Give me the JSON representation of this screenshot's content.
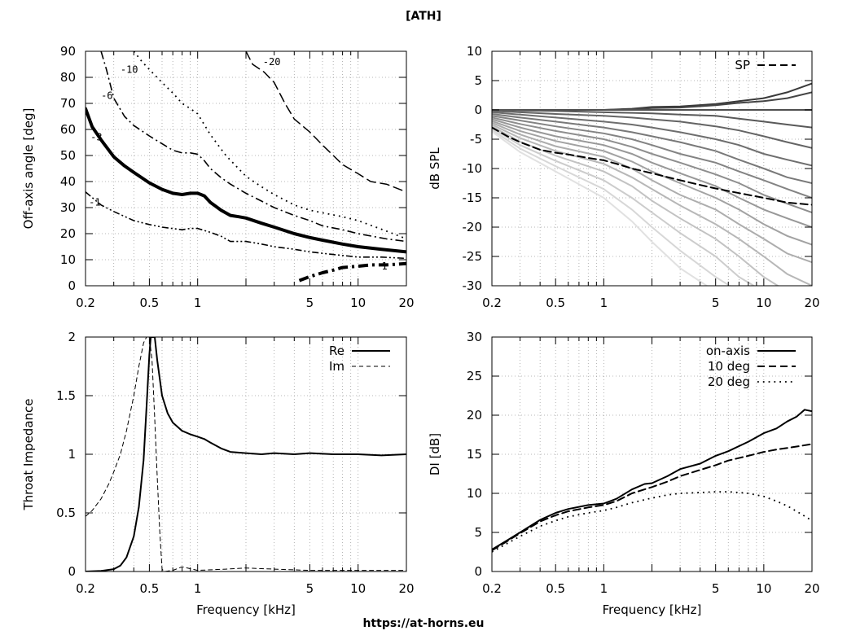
{
  "header": {
    "title": "[ATH]"
  },
  "footer": {
    "url": "https://at-horns.eu"
  },
  "chart_data": [
    {
      "id": "polar",
      "type": "line",
      "title": "",
      "xlabel": "",
      "ylabel": "Off-axis angle [deg]",
      "xscale": "log",
      "xlim": [
        0.2,
        20
      ],
      "ylim": [
        0,
        90
      ],
      "xticks": [
        0.2,
        0.5,
        1,
        2,
        5,
        10,
        20
      ],
      "xtick_labels": [
        "0.2",
        "0.5",
        "1",
        "",
        "5",
        "10",
        "20"
      ],
      "yticks": [
        0,
        10,
        20,
        30,
        40,
        50,
        60,
        70,
        80,
        90
      ],
      "grid": true,
      "series": [
        {
          "name": "-1",
          "style": "dash-dot-dot",
          "label_at": [
            0.21,
            32
          ],
          "x": [
            0.2,
            0.25,
            0.3,
            0.4,
            0.5,
            0.6,
            0.8,
            0.9,
            1.0,
            1.2,
            1.4,
            1.6,
            2.0,
            2.5,
            3,
            4,
            5,
            7,
            10,
            14,
            20
          ],
          "y": [
            36,
            31,
            28.5,
            25,
            23.5,
            22.5,
            21.5,
            22,
            22,
            20.5,
            19,
            17,
            17,
            16,
            15,
            14,
            13,
            12,
            11,
            11,
            10.5
          ]
        },
        {
          "name": "-3",
          "style": "thick",
          "label_at": [
            0.215,
            57
          ],
          "x": [
            0.2,
            0.22,
            0.25,
            0.3,
            0.35,
            0.4,
            0.5,
            0.6,
            0.7,
            0.8,
            0.9,
            1.0,
            1.1,
            1.2,
            1.4,
            1.6,
            1.8,
            2.0,
            2.5,
            3,
            4,
            5,
            6,
            8,
            10,
            14,
            20
          ],
          "y": [
            68,
            61,
            56,
            49.5,
            46,
            43.5,
            39.5,
            37,
            35.5,
            35,
            35.5,
            35.5,
            34.5,
            32,
            29,
            27,
            26.5,
            26,
            24,
            22.5,
            20,
            18.5,
            17.5,
            16,
            15,
            14,
            13
          ]
        },
        {
          "name": "-6",
          "style": "dash-dot",
          "label_at": [
            0.25,
            73
          ],
          "x": [
            0.25,
            0.27,
            0.3,
            0.35,
            0.4,
            0.5,
            0.6,
            0.7,
            0.8,
            0.9,
            1.0,
            1.1,
            1.2,
            1.4,
            1.6,
            2.0,
            2.5,
            3,
            4,
            5,
            6,
            8,
            10,
            15,
            20
          ],
          "y": [
            90,
            83,
            72,
            65,
            61.5,
            57.5,
            54.5,
            52,
            51,
            51,
            50.5,
            48,
            45,
            41.5,
            39,
            35.5,
            32.5,
            30,
            27,
            25,
            23,
            21.5,
            20,
            18,
            17
          ]
        },
        {
          "name": "-10",
          "style": "dotted",
          "label_at": [
            0.33,
            83
          ],
          "x": [
            0.4,
            0.45,
            0.5,
            0.6,
            0.7,
            0.8,
            0.9,
            1.0,
            1.2,
            1.5,
            2.0,
            2.5,
            3,
            4,
            5,
            6,
            8,
            10,
            15,
            20
          ],
          "y": [
            90,
            86,
            83,
            78,
            74,
            70,
            68,
            66,
            58,
            50,
            42,
            38,
            35,
            31,
            29,
            28,
            26.5,
            25,
            21,
            18
          ]
        },
        {
          "name": "-20",
          "style": "long-dash",
          "label_at": [
            2.55,
            86
          ],
          "x": [
            2.0,
            2.2,
            2.6,
            3,
            3.5,
            4,
            5,
            6,
            7,
            8,
            10,
            12,
            15,
            20
          ],
          "y": [
            90,
            85,
            82,
            78,
            70,
            64,
            59,
            54,
            50,
            46.5,
            43,
            40,
            39,
            36
          ]
        },
        {
          "name": "1",
          "style": "thick-dash-dot",
          "label_at": [
            14,
            7.5
          ],
          "x": [
            4.3,
            5,
            6,
            7,
            8,
            10,
            12,
            15,
            20
          ],
          "y": [
            2,
            3.5,
            5,
            6,
            7,
            7.5,
            8,
            8,
            8.5
          ]
        }
      ]
    },
    {
      "id": "spl",
      "type": "line",
      "title": "",
      "xlabel": "",
      "ylabel": "dB SPL",
      "xscale": "log",
      "xlim": [
        0.2,
        20
      ],
      "ylim": [
        -30,
        10
      ],
      "xticks": [
        0.2,
        0.5,
        1,
        2,
        5,
        10,
        20
      ],
      "xtick_labels": [
        "0.2",
        "0.5",
        "1",
        "",
        "5",
        "10",
        "20"
      ],
      "yticks": [
        -30,
        -25,
        -20,
        -15,
        -10,
        -5,
        0,
        5,
        10
      ],
      "grid": true,
      "legend": {
        "position": "top-right",
        "entries": [
          "SP"
        ]
      },
      "series": [
        {
          "name": "SP",
          "style": "dashed",
          "x": [
            0.2,
            0.25,
            0.3,
            0.4,
            0.5,
            0.6,
            0.8,
            1.0,
            1.2,
            1.5,
            2,
            3,
            4,
            5,
            7,
            10,
            14,
            20
          ],
          "y": [
            -3,
            -4.5,
            -5.5,
            -6.8,
            -7.3,
            -7.6,
            -8.2,
            -8.6,
            -9.2,
            -10.0,
            -10.8,
            -12.0,
            -12.8,
            -13.4,
            -14.2,
            -15.0,
            -15.8,
            -16.2
          ]
        }
      ],
      "fan_note_series": [
        {
          "x": [
            0.2,
            0.3,
            0.5,
            1,
            1.5,
            2,
            3,
            5,
            7,
            10,
            14,
            20
          ],
          "curves": [
            [
              0,
              0,
              0,
              0,
              0.2,
              0.5,
              0.6,
              1.0,
              1.5,
              2.0,
              3.0,
              4.5
            ],
            [
              0,
              0,
              0,
              0,
              0.1,
              0.3,
              0.4,
              0.8,
              1.2,
              1.5,
              2.0,
              3.0
            ],
            [
              0,
              0,
              0,
              0,
              0,
              0,
              0,
              0,
              0,
              0,
              0,
              0
            ],
            [
              0,
              -0.1,
              -0.2,
              -0.4,
              -0.5,
              -0.6,
              -0.8,
              -1.0,
              -1.5,
              -2.0,
              -2.5,
              -3.0
            ],
            [
              -0.2,
              -0.4,
              -0.7,
              -1.0,
              -1.3,
              -1.6,
              -2.0,
              -2.8,
              -3.5,
              -4.5,
              -5.5,
              -6.5
            ],
            [
              -0.4,
              -0.8,
              -1.3,
              -2.0,
              -2.5,
              -3.0,
              -3.8,
              -5.0,
              -6.0,
              -7.5,
              -8.5,
              -9.5
            ],
            [
              -0.7,
              -1.3,
              -2.0,
              -3.0,
              -3.8,
              -4.5,
              -5.5,
              -7.0,
              -8.5,
              -10.0,
              -11.5,
              -12.5
            ],
            [
              -1.0,
              -1.8,
              -2.8,
              -4.0,
              -5.0,
              -6.0,
              -7.5,
              -9.0,
              -10.5,
              -12.0,
              -13.5,
              -15.0
            ],
            [
              -1.3,
              -2.4,
              -3.6,
              -5.0,
              -6.3,
              -7.5,
              -9.0,
              -11.0,
              -12.5,
              -14.5,
              -16.0,
              -17.5
            ],
            [
              -1.6,
              -3.0,
              -4.5,
              -6.0,
              -7.5,
              -9.0,
              -10.8,
              -13.0,
              -15.0,
              -17.0,
              -18.5,
              -20.0
            ],
            [
              -1.9,
              -3.6,
              -5.3,
              -7.0,
              -8.8,
              -10.5,
              -12.5,
              -15.0,
              -17.0,
              -19.5,
              -21.5,
              -23.0
            ],
            [
              -2.2,
              -4.2,
              -6.2,
              -8.0,
              -10.0,
              -12.0,
              -14.5,
              -17.0,
              -19.5,
              -22.0,
              -24.5,
              -26.0
            ],
            [
              -2.5,
              -4.8,
              -7.0,
              -9.2,
              -11.5,
              -13.5,
              -16.3,
              -19.5,
              -22.0,
              -25.0,
              -28.0,
              -30.0
            ],
            [
              -2.8,
              -5.4,
              -7.8,
              -10.5,
              -13.0,
              -15.5,
              -18.5,
              -22.0,
              -25.0,
              -28.5,
              -31,
              -31
            ],
            [
              -3.1,
              -6.0,
              -8.7,
              -12.0,
              -15.0,
              -17.5,
              -21.0,
              -25.0,
              -28.5,
              -31,
              -31,
              -31
            ],
            [
              -3.4,
              -6.6,
              -9.6,
              -13.5,
              -17.0,
              -20.0,
              -24.0,
              -28.5,
              -31,
              -31,
              -31,
              -31
            ],
            [
              -3.7,
              -7.2,
              -10.5,
              -15.0,
              -19.0,
              -22.5,
              -27.0,
              -31,
              -31,
              -31,
              -31,
              -31
            ]
          ]
        }
      ]
    },
    {
      "id": "impedance",
      "type": "line",
      "title": "",
      "xlabel": "Frequency [kHz]",
      "ylabel": "Throat Impedance",
      "xscale": "log",
      "xlim": [
        0.2,
        20
      ],
      "ylim": [
        0,
        2
      ],
      "xticks": [
        0.2,
        0.5,
        1,
        2,
        5,
        10,
        20
      ],
      "xtick_labels": [
        "0.2",
        "0.5",
        "1",
        "",
        "5",
        "10",
        "20"
      ],
      "yticks": [
        0,
        0.5,
        1,
        1.5,
        2
      ],
      "grid": true,
      "legend": {
        "position": "top-right",
        "entries": [
          "Re",
          "Im"
        ]
      },
      "series": [
        {
          "name": "Re",
          "style": "solid",
          "x": [
            0.2,
            0.25,
            0.3,
            0.33,
            0.36,
            0.4,
            0.43,
            0.46,
            0.48,
            0.5,
            0.51,
            0.52,
            0.54,
            0.56,
            0.6,
            0.65,
            0.7,
            0.8,
            0.9,
            1.0,
            1.1,
            1.2,
            1.4,
            1.6,
            2,
            2.5,
            3,
            4,
            5,
            7,
            10,
            14,
            20
          ],
          "y": [
            0,
            0.005,
            0.02,
            0.05,
            0.12,
            0.3,
            0.55,
            0.95,
            1.4,
            1.85,
            2.0,
            2.0,
            2.0,
            1.8,
            1.5,
            1.35,
            1.27,
            1.2,
            1.17,
            1.15,
            1.13,
            1.1,
            1.05,
            1.02,
            1.01,
            1.0,
            1.01,
            1.0,
            1.01,
            1.0,
            1.0,
            0.99,
            1.0
          ]
        },
        {
          "name": "Im",
          "style": "thin-dashed",
          "x": [
            0.2,
            0.22,
            0.25,
            0.28,
            0.3,
            0.33,
            0.36,
            0.4,
            0.43,
            0.46,
            0.48,
            0.5,
            0.52,
            0.54,
            0.56,
            0.58,
            0.6,
            0.62,
            0.7,
            0.8,
            1.0,
            1.5,
            2.0,
            3.0,
            5.0,
            10.0,
            20.0
          ],
          "y": [
            0.47,
            0.52,
            0.62,
            0.75,
            0.85,
            1.0,
            1.2,
            1.5,
            1.75,
            1.95,
            2.0,
            2.0,
            1.8,
            1.3,
            0.8,
            0.35,
            0.02,
            0,
            0.01,
            0.04,
            0.01,
            0.02,
            0.03,
            0.02,
            0.01,
            0.01,
            0.01
          ]
        }
      ]
    },
    {
      "id": "di",
      "type": "line",
      "title": "",
      "xlabel": "Frequency [kHz]",
      "ylabel": "DI [dB]",
      "xscale": "log",
      "xlim": [
        0.2,
        20
      ],
      "ylim": [
        0,
        30
      ],
      "xticks": [
        0.2,
        0.5,
        1,
        2,
        5,
        10,
        20
      ],
      "xtick_labels": [
        "0.2",
        "0.5",
        "1",
        "",
        "5",
        "10",
        "20"
      ],
      "yticks": [
        0,
        5,
        10,
        15,
        20,
        25,
        30
      ],
      "grid": true,
      "legend": {
        "position": "top-right",
        "entries": [
          "on-axis",
          "10 deg",
          "20 deg"
        ]
      },
      "series": [
        {
          "name": "on-axis",
          "style": "solid",
          "x": [
            0.2,
            0.25,
            0.3,
            0.4,
            0.5,
            0.6,
            0.8,
            1.0,
            1.2,
            1.5,
            1.8,
            2,
            2.5,
            3,
            4,
            5,
            6,
            8,
            10,
            12,
            14,
            16,
            18,
            20
          ],
          "y": [
            2.8,
            4.0,
            5.0,
            6.6,
            7.5,
            8.0,
            8.5,
            8.7,
            9.3,
            10.5,
            11.2,
            11.3,
            12.2,
            13.1,
            13.8,
            14.8,
            15.4,
            16.6,
            17.7,
            18.3,
            19.2,
            19.8,
            20.7,
            20.5
          ]
        },
        {
          "name": "10 deg",
          "style": "dashed",
          "x": [
            0.2,
            0.25,
            0.3,
            0.4,
            0.5,
            0.6,
            0.8,
            1.0,
            1.2,
            1.5,
            2,
            2.5,
            3,
            4,
            5,
            6,
            8,
            10,
            12,
            15,
            20
          ],
          "y": [
            2.7,
            3.9,
            4.9,
            6.4,
            7.2,
            7.7,
            8.2,
            8.5,
            9.0,
            10.0,
            10.8,
            11.5,
            12.2,
            13.0,
            13.6,
            14.2,
            14.8,
            15.3,
            15.6,
            15.9,
            16.3
          ]
        },
        {
          "name": "20 deg",
          "style": "dotted",
          "x": [
            0.2,
            0.25,
            0.3,
            0.4,
            0.5,
            0.6,
            0.8,
            1.0,
            1.2,
            1.5,
            2,
            2.5,
            3,
            4,
            5,
            6,
            7,
            8,
            10,
            12,
            14,
            17,
            20
          ],
          "y": [
            2.5,
            3.6,
            4.5,
            5.8,
            6.5,
            7.0,
            7.5,
            7.8,
            8.2,
            8.8,
            9.4,
            9.8,
            10.0,
            10.1,
            10.2,
            10.2,
            10.1,
            10.0,
            9.6,
            9.0,
            8.4,
            7.4,
            6.5
          ]
        }
      ]
    }
  ],
  "colors": {
    "axis": "#000000",
    "grid": "#a0a0a0",
    "fan_dark": "#3a3a3a",
    "fan_light": "#e6e6e6"
  }
}
